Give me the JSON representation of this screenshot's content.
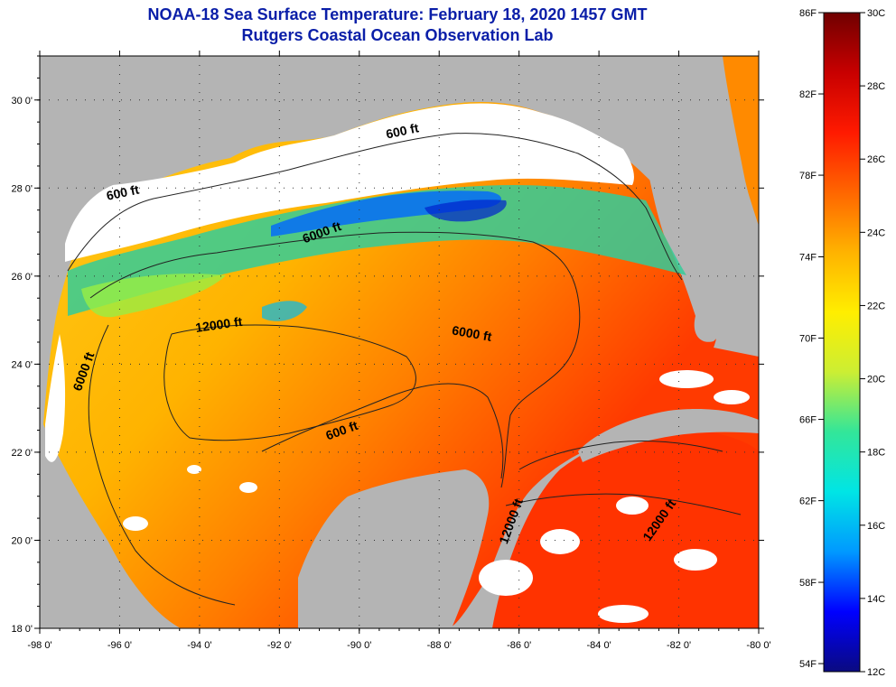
{
  "title": "NOAA-18 Sea Surface Temperature:  February 18, 2020 1457 GMT",
  "subtitle": "Rutgers Coastal Ocean Observation Lab",
  "colors": {
    "land": "#b4b4b4",
    "cloud": "#ffffff"
  },
  "lat_labels": [
    {
      "lat": 30,
      "text": "30 0'"
    },
    {
      "lat": 28,
      "text": "28 0'"
    },
    {
      "lat": 26,
      "text": "26 0'"
    },
    {
      "lat": 24,
      "text": "24 0'"
    },
    {
      "lat": 22,
      "text": "22 0'"
    },
    {
      "lat": 20,
      "text": "20 0'"
    },
    {
      "lat": 18,
      "text": "18 0'"
    }
  ],
  "lon_labels": [
    {
      "lon": -98,
      "text": "-98 0'"
    },
    {
      "lon": -96,
      "text": "-96 0'"
    },
    {
      "lon": -94,
      "text": "-94 0'"
    },
    {
      "lon": -92,
      "text": "-92 0'"
    },
    {
      "lon": -90,
      "text": "-90 0'"
    },
    {
      "lon": -88,
      "text": "-88 0'"
    },
    {
      "lon": -86,
      "text": "-86 0'"
    },
    {
      "lon": -84,
      "text": "-84 0'"
    },
    {
      "lon": -82,
      "text": "-82 0'"
    },
    {
      "lon": -80,
      "text": "-80 0'"
    }
  ],
  "contour_labels": [
    {
      "text": "600 ft",
      "lon": -88.9,
      "lat": 29.2
    },
    {
      "text": "600 ft",
      "lon": -95.9,
      "lat": 27.8
    },
    {
      "text": "6000 ft",
      "lon": -90.9,
      "lat": 26.9
    },
    {
      "text": "12000 ft",
      "lon": -93.5,
      "lat": 24.8
    },
    {
      "text": "6000 ft",
      "lon": -87.2,
      "lat": 24.6
    },
    {
      "text": "6000 ft",
      "lon": -96.8,
      "lat": 23.8
    },
    {
      "text": "600 ft",
      "lon": -90.4,
      "lat": 22.4
    },
    {
      "text": "12000 ft",
      "lon": -86.1,
      "lat": 20.4
    },
    {
      "text": "12000 ft",
      "lon": -82.4,
      "lat": 20.4
    }
  ],
  "colorbar": {
    "min_c": 12,
    "max_c": 30,
    "stops": [
      "#0a0a80",
      "#0000ff",
      "#0099ff",
      "#00e5e5",
      "#33e699",
      "#ccee33",
      "#ffee00",
      "#ffb300",
      "#ff6600",
      "#ff1a00",
      "#c80000",
      "#700000"
    ],
    "f_labels": [
      {
        "c": 30.0,
        "text": "86F"
      },
      {
        "c": 27.78,
        "text": "82F"
      },
      {
        "c": 25.56,
        "text": "78F"
      },
      {
        "c": 23.33,
        "text": "74F"
      },
      {
        "c": 21.11,
        "text": "70F"
      },
      {
        "c": 18.89,
        "text": "66F"
      },
      {
        "c": 16.67,
        "text": "62F"
      },
      {
        "c": 14.44,
        "text": "58F"
      },
      {
        "c": 12.22,
        "text": "54F"
      }
    ],
    "c_labels": [
      {
        "c": 30,
        "text": "30C"
      },
      {
        "c": 28,
        "text": "28C"
      },
      {
        "c": 26,
        "text": "26C"
      },
      {
        "c": 24,
        "text": "24C"
      },
      {
        "c": 22,
        "text": "22C"
      },
      {
        "c": 20,
        "text": "20C"
      },
      {
        "c": 18,
        "text": "18C"
      },
      {
        "c": 16,
        "text": "16C"
      },
      {
        "c": 14,
        "text": "14C"
      },
      {
        "c": 12,
        "text": "12C"
      }
    ]
  }
}
